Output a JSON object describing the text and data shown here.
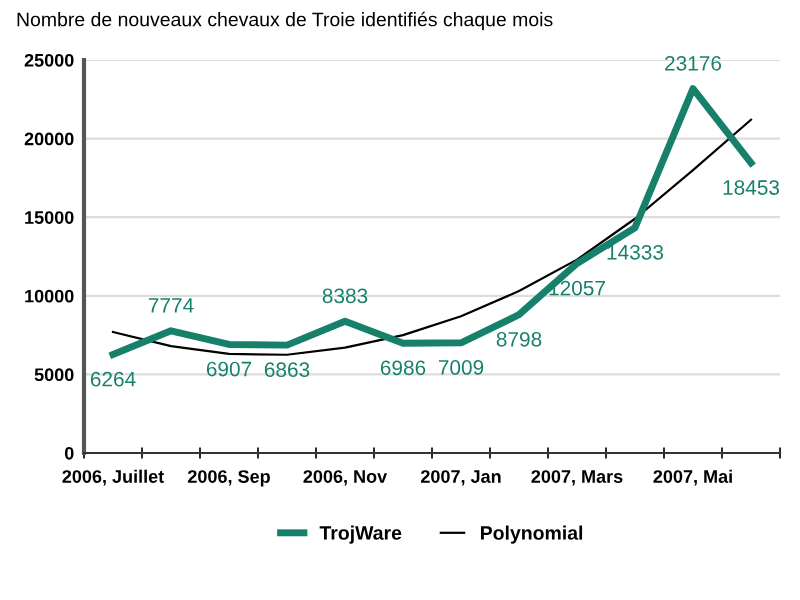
{
  "chart_data": {
    "type": "line",
    "title": "Nombre de nouveaux chevaux de Troie identifiés chaque mois",
    "categories": [
      "2006, Juillet",
      null,
      "2006, Sep",
      null,
      "2006, Nov",
      null,
      "2007, Jan",
      null,
      "2007, Mars",
      null,
      "2007, Mai",
      null
    ],
    "series": [
      {
        "name": "TrojWare",
        "color": "#17806b",
        "values": [
          6264,
          7774,
          6907,
          6863,
          8383,
          6986,
          7009,
          8798,
          12057,
          14333,
          23176,
          18453
        ],
        "data_labels": true
      },
      {
        "name": "Polynomial",
        "color": "#000000",
        "values": [
          7700,
          6800,
          6300,
          6250,
          6700,
          7500,
          8700,
          10300,
          12300,
          14900,
          18000,
          21200
        ]
      }
    ],
    "ylim": [
      0,
      25000
    ],
    "yticks": [
      0,
      5000,
      10000,
      15000,
      20000,
      25000
    ],
    "grid": "y",
    "legend": "bottom",
    "marker": "none",
    "line_style": "solid"
  }
}
